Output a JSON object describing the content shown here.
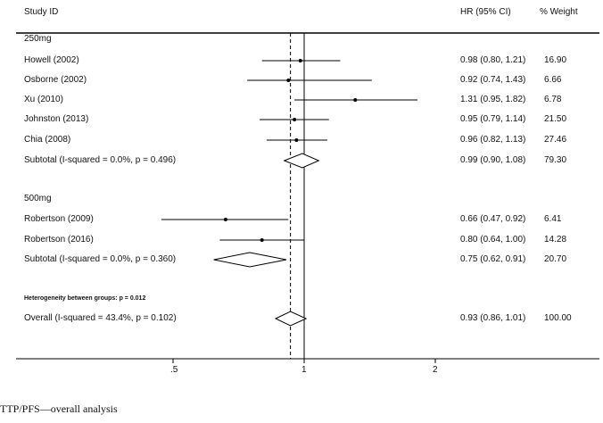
{
  "chart_data": {
    "type": "forest",
    "headers": {
      "study": "Study ID",
      "hr": "HR (95% CI)",
      "weight": "% Weight"
    },
    "x_scale": "log",
    "xlim": [
      0.36,
      4.3
    ],
    "xticks": [
      0.5,
      1,
      2
    ],
    "xtick_labels": [
      ".5",
      "1",
      "2"
    ],
    "null_line": 1,
    "overall_line": 0.93,
    "rows": [
      {
        "kind": "group",
        "label": "250mg"
      },
      {
        "kind": "study",
        "label": "Howell (2002)",
        "hr": 0.98,
        "lo": 0.8,
        "hi": 1.21,
        "hr_text": "0.98 (0.80, 1.21)",
        "weight": "16.90"
      },
      {
        "kind": "study",
        "label": "Osborne (2002)",
        "hr": 0.92,
        "lo": 0.74,
        "hi": 1.43,
        "hr_text": "0.92 (0.74, 1.43)",
        "weight": "6.66"
      },
      {
        "kind": "study",
        "label": "Xu  (2010)",
        "hr": 1.31,
        "lo": 0.95,
        "hi": 1.82,
        "hr_text": "1.31 (0.95, 1.82)",
        "weight": "6.78"
      },
      {
        "kind": "study",
        "label": "Johnston  (2013)",
        "hr": 0.95,
        "lo": 0.79,
        "hi": 1.14,
        "hr_text": "0.95 (0.79, 1.14)",
        "weight": "21.50"
      },
      {
        "kind": "study",
        "label": "Chia  (2008)",
        "hr": 0.96,
        "lo": 0.82,
        "hi": 1.13,
        "hr_text": "0.96 (0.82, 1.13)",
        "weight": "27.46"
      },
      {
        "kind": "subtotal",
        "label": "Subtotal  (I-squared = 0.0%, p = 0.496)",
        "hr": 0.99,
        "lo": 0.9,
        "hi": 1.08,
        "hr_text": "0.99 (0.90, 1.08)",
        "weight": "79.30"
      },
      {
        "kind": "group",
        "label": "500mg"
      },
      {
        "kind": "study",
        "label": "Robertson  (2009)",
        "hr": 0.66,
        "lo": 0.47,
        "hi": 0.92,
        "hr_text": "0.66 (0.47, 0.92)",
        "weight": "6.41"
      },
      {
        "kind": "study",
        "label": "Robertson (2016)",
        "hr": 0.8,
        "lo": 0.64,
        "hi": 1.0,
        "hr_text": "0.80 (0.64, 1.00)",
        "weight": "14.28"
      },
      {
        "kind": "subtotal",
        "label": "Subtotal  (I-squared = 0.0%, p = 0.360)",
        "hr": 0.75,
        "lo": 0.62,
        "hi": 0.91,
        "hr_text": "0.75 (0.62, 0.91)",
        "weight": "20.70"
      },
      {
        "kind": "note",
        "label": "Heterogeneity between groups: p = 0.012"
      },
      {
        "kind": "subtotal",
        "label": "Overall  (I-squared = 43.4%, p = 0.102)",
        "hr": 0.93,
        "lo": 0.86,
        "hi": 1.01,
        "hr_text": "0.93 (0.86, 1.01)",
        "weight": "100.00"
      }
    ]
  },
  "caption": "TTP/PFS—overall analysis"
}
